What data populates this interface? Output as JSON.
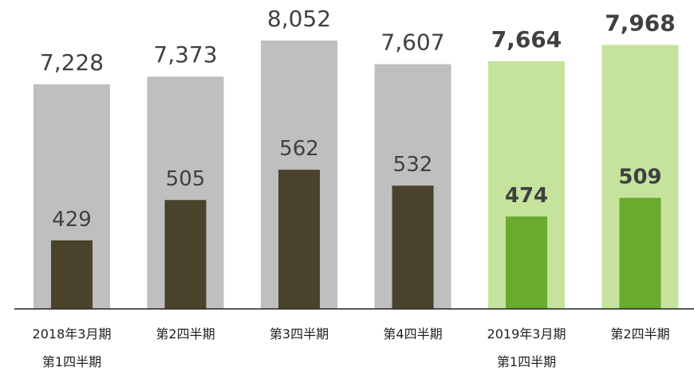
{
  "chart_data": {
    "type": "bar",
    "categories": [
      "2018年3月期\n第1四半期",
      "第2四半期",
      "第3四半期",
      "第4四半期",
      "2019年3月期\n第1四半期",
      "第2四半期"
    ],
    "ylim": [
      3000,
      8500
    ],
    "y2lim": [
      300,
      850
    ],
    "series": [
      {
        "values": [
          7228,
          7373,
          8052,
          7607,
          7664,
          7968
        ],
        "value_labels": [
          "7,228",
          "7,373",
          "8,052",
          "7,607",
          "7,664",
          "7,968"
        ],
        "colors": [
          "#bfbfbf",
          "#bfbfbf",
          "#bfbfbf",
          "#bfbfbf",
          "#c5e39d",
          "#c5e39d"
        ],
        "label_bold": [
          false,
          false,
          false,
          false,
          true,
          true
        ]
      },
      {
        "axis": "y2",
        "values": [
          429,
          505,
          562,
          532,
          474,
          509
        ],
        "colors": [
          "#4a432c",
          "#4a432c",
          "#4a432c",
          "#4a432c",
          "#6aaa2d",
          "#6aaa2d"
        ],
        "label_bold": [
          false,
          false,
          false,
          false,
          true,
          true
        ]
      }
    ]
  }
}
